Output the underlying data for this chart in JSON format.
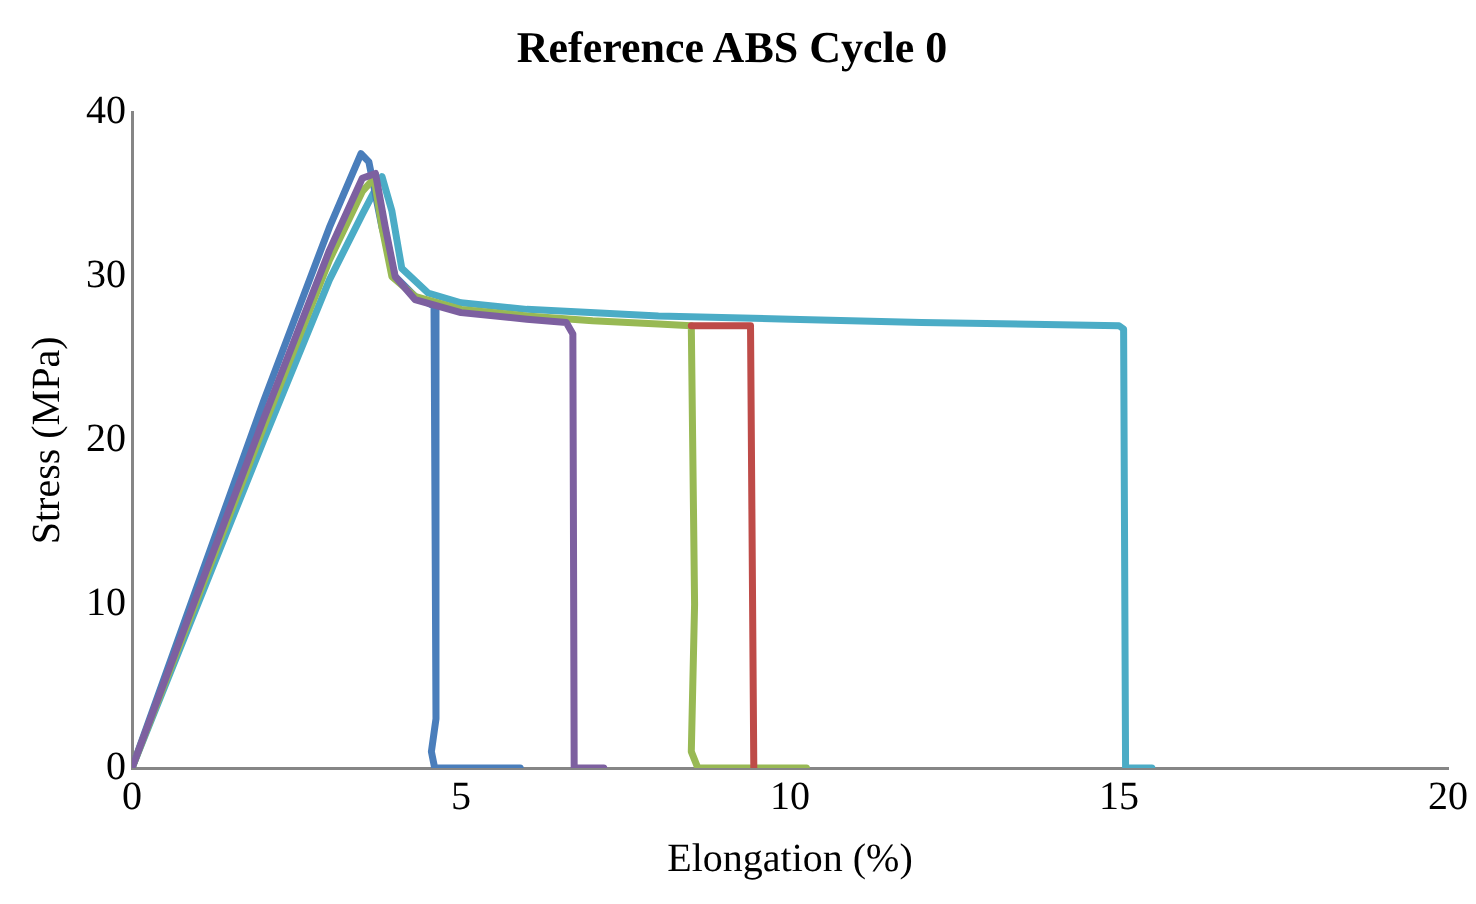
{
  "chart_data": {
    "type": "line",
    "title": "Reference ABS Cycle 0",
    "xlabel": "Elongation (%)",
    "ylabel": "Stress (MPa)",
    "xlim": [
      0,
      20
    ],
    "xticks": [
      0,
      5,
      10,
      15,
      20
    ],
    "ylim": [
      0,
      40
    ],
    "yticks": [
      0,
      10,
      20,
      30,
      40
    ],
    "grid": false,
    "legend": false,
    "marker": "none",
    "line_style": "solid",
    "series": [
      {
        "color": "#be4b48",
        "x": [
          8.5,
          9,
          9.4,
          9.45
        ],
        "values": [
          27,
          27,
          27,
          0
        ]
      },
      {
        "color": "#7d60a0",
        "x": [
          0,
          1,
          2,
          3,
          3.5,
          3.7,
          3.85,
          4.0,
          4.3,
          5,
          6,
          6.6,
          6.7,
          6.72,
          7.17
        ],
        "values": [
          0,
          10.7,
          21.3,
          31.6,
          36,
          36.3,
          33,
          30,
          28.6,
          27.8,
          27.4,
          27.2,
          26.5,
          0,
          0
        ]
      },
      {
        "color": "#98b954",
        "x": [
          0,
          1,
          2,
          3,
          3.5,
          3.68,
          3.8,
          3.95,
          4.3,
          5,
          6,
          7,
          8,
          8.5,
          8.55,
          8.5,
          8.6,
          10.25
        ],
        "values": [
          0,
          10.4,
          20.8,
          31,
          35.2,
          36,
          33,
          30,
          28.8,
          28,
          27.6,
          27.3,
          27.1,
          27,
          10,
          1,
          0,
          0
        ]
      },
      {
        "color": "#4a7ebb",
        "x": [
          0,
          1,
          2,
          3,
          3.48,
          3.6,
          3.8,
          4.0,
          4.3,
          4.59,
          4.62,
          4.55,
          4.6,
          5.9
        ],
        "values": [
          0,
          11.2,
          22.4,
          33,
          37.5,
          37,
          33,
          30,
          28.8,
          28.2,
          3,
          1,
          0,
          0
        ]
      },
      {
        "color": "#4bacc6",
        "x": [
          0,
          1,
          2,
          3,
          3.5,
          3.8,
          3.95,
          4.1,
          4.5,
          5,
          6,
          8,
          10,
          12,
          15,
          15.07,
          15.1,
          15.5
        ],
        "values": [
          0,
          10,
          20,
          29.8,
          33.8,
          36.1,
          34,
          30.5,
          29,
          28.4,
          28,
          27.6,
          27.4,
          27.2,
          27,
          26.8,
          0,
          0
        ]
      }
    ]
  }
}
